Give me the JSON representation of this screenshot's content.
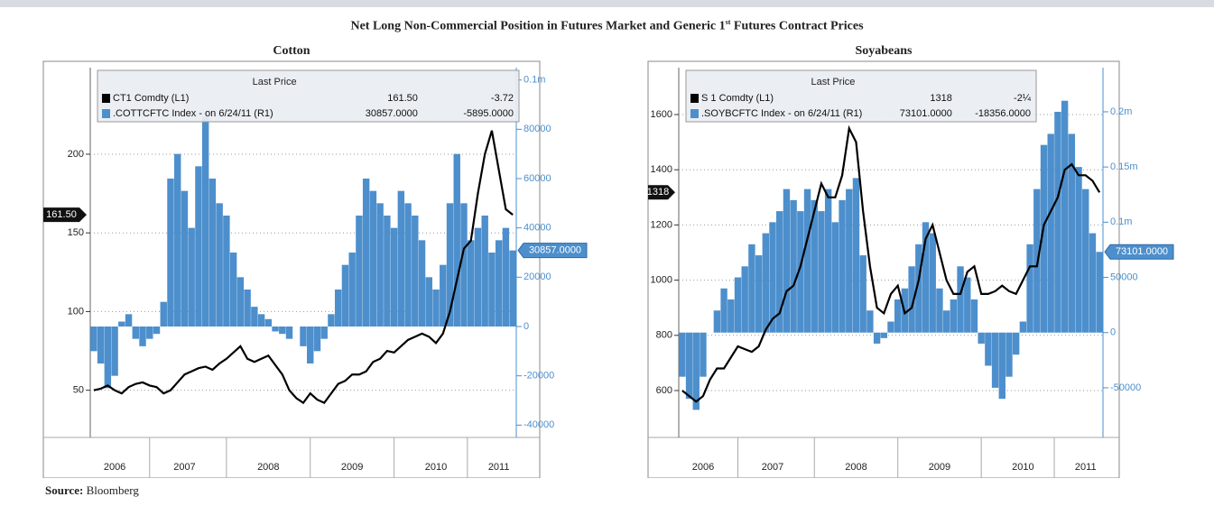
{
  "title": [
    "Net Long Non-Commercial Position in Futures Market and Generic 1",
    "st",
    "Futures Contract Prices"
  ],
  "source": {
    "label": "Source:",
    "text": "Bloomberg"
  },
  "chart_data": [
    {
      "type": "bar_line",
      "title": "Cotton",
      "legend_title": "Last Price",
      "categories": [
        null,
        null,
        null,
        "2006",
        null,
        null,
        null,
        null,
        null,
        null,
        null,
        null,
        null,
        "2007",
        null,
        null,
        null,
        null,
        null,
        null,
        null,
        null,
        null,
        null,
        null,
        "2008",
        null,
        null,
        null,
        null,
        null,
        null,
        null,
        null,
        null,
        null,
        null,
        "2009",
        null,
        null,
        null,
        null,
        null,
        null,
        null,
        null,
        null,
        null,
        null,
        "2010",
        null,
        null,
        null,
        null,
        null,
        null,
        null,
        null,
        "2011",
        null,
        null
      ],
      "series": [
        {
          "name": "CT1 Comdty (L1)",
          "type": "line",
          "color": "#000000",
          "last": "161.50",
          "change": "-3.72",
          "values": [
            50,
            51,
            53,
            50,
            48,
            52,
            54,
            55,
            53,
            52,
            48,
            50,
            55,
            60,
            62,
            64,
            65,
            63,
            67,
            70,
            74,
            78,
            70,
            68,
            70,
            72,
            66,
            60,
            50,
            45,
            42,
            48,
            44,
            42,
            48,
            54,
            56,
            60,
            60,
            62,
            68,
            70,
            75,
            74,
            78,
            82,
            84,
            86,
            84,
            80,
            86,
            100,
            120,
            140,
            145,
            175,
            200,
            215,
            190,
            165,
            161.5
          ]
        },
        {
          "name": ".COTTCFTC Index - on 6/24/11 (R1)",
          "type": "bar",
          "axis": "y2",
          "color": "#4d8fcc",
          "last": "30857.0000",
          "change": "-5895.0000",
          "values": [
            -10000,
            -15000,
            -25000,
            -20000,
            2000,
            5000,
            -5000,
            -8000,
            -5000,
            -3000,
            10000,
            60000,
            70000,
            55000,
            40000,
            65000,
            85000,
            60000,
            50000,
            45000,
            30000,
            20000,
            15000,
            8000,
            5000,
            3000,
            -2000,
            -3000,
            -5000,
            0,
            -8000,
            -15000,
            -10000,
            -5000,
            5000,
            15000,
            25000,
            30000,
            45000,
            60000,
            55000,
            50000,
            45000,
            40000,
            55000,
            50000,
            45000,
            35000,
            20000,
            15000,
            25000,
            50000,
            70000,
            50000,
            35000,
            40000,
            45000,
            30000,
            35000,
            40000,
            30857
          ]
        }
      ],
      "ylim": [
        20,
        255
      ],
      "yticks": [
        50,
        100,
        150,
        200
      ],
      "y2lim": [
        -45000,
        105000
      ],
      "y2ticks": [
        -40000,
        -20000,
        0,
        20000,
        40000,
        60000,
        80000,
        {
          "value": 100000,
          "label": "0.1m"
        }
      ],
      "grid": true
    },
    {
      "type": "bar_line",
      "title": "Soyabeans",
      "legend_title": "Last Price",
      "categories": [
        null,
        null,
        null,
        "2006",
        null,
        null,
        null,
        null,
        null,
        null,
        null,
        null,
        null,
        "2007",
        null,
        null,
        null,
        null,
        null,
        null,
        null,
        null,
        null,
        null,
        null,
        "2008",
        null,
        null,
        null,
        null,
        null,
        null,
        null,
        null,
        null,
        null,
        null,
        "2009",
        null,
        null,
        null,
        null,
        null,
        null,
        null,
        null,
        null,
        null,
        null,
        "2010",
        null,
        null,
        null,
        null,
        null,
        null,
        null,
        null,
        "2011",
        null,
        null
      ],
      "series": [
        {
          "name": "S 1 Comdty (L1)",
          "type": "line",
          "color": "#000000",
          "last": "1318",
          "change": "-2¼",
          "values": [
            600,
            580,
            560,
            580,
            640,
            680,
            680,
            720,
            760,
            750,
            740,
            760,
            820,
            860,
            880,
            960,
            980,
            1050,
            1150,
            1250,
            1350,
            1300,
            1300,
            1380,
            1550,
            1500,
            1250,
            1050,
            900,
            880,
            950,
            980,
            880,
            900,
            1000,
            1150,
            1200,
            1100,
            1000,
            950,
            950,
            1030,
            1050,
            950,
            950,
            960,
            980,
            960,
            950,
            1000,
            1050,
            1050,
            1200,
            1250,
            1300,
            1400,
            1420,
            1380,
            1380,
            1360,
            1318
          ]
        },
        {
          "name": ".SOYBCFTC Index - on 6/24/11 (R1)",
          "type": "bar",
          "axis": "y2",
          "color": "#4d8fcc",
          "last": "73101.0000",
          "change": "-18356.0000",
          "values": [
            -40000,
            -60000,
            -70000,
            -40000,
            0,
            20000,
            40000,
            30000,
            50000,
            60000,
            80000,
            70000,
            90000,
            100000,
            110000,
            130000,
            120000,
            110000,
            130000,
            120000,
            110000,
            130000,
            100000,
            120000,
            130000,
            140000,
            70000,
            20000,
            -10000,
            -5000,
            10000,
            30000,
            40000,
            60000,
            80000,
            100000,
            90000,
            40000,
            20000,
            30000,
            60000,
            50000,
            30000,
            -10000,
            -30000,
            -50000,
            -60000,
            -40000,
            -20000,
            10000,
            80000,
            130000,
            170000,
            180000,
            200000,
            210000,
            180000,
            150000,
            130000,
            90000,
            73101
          ]
        }
      ],
      "ylim": [
        430,
        1770
      ],
      "yticks": [
        600,
        800,
        1000,
        1200,
        1400,
        1600
      ],
      "y2lim": [
        -95000,
        240000
      ],
      "y2ticks": [
        -50000,
        0,
        50000,
        {
          "value": 100000,
          "label": "0.1m"
        },
        {
          "value": 150000,
          "label": "0.15m"
        },
        {
          "value": 200000,
          "label": "0.2m"
        }
      ],
      "grid": true
    }
  ]
}
